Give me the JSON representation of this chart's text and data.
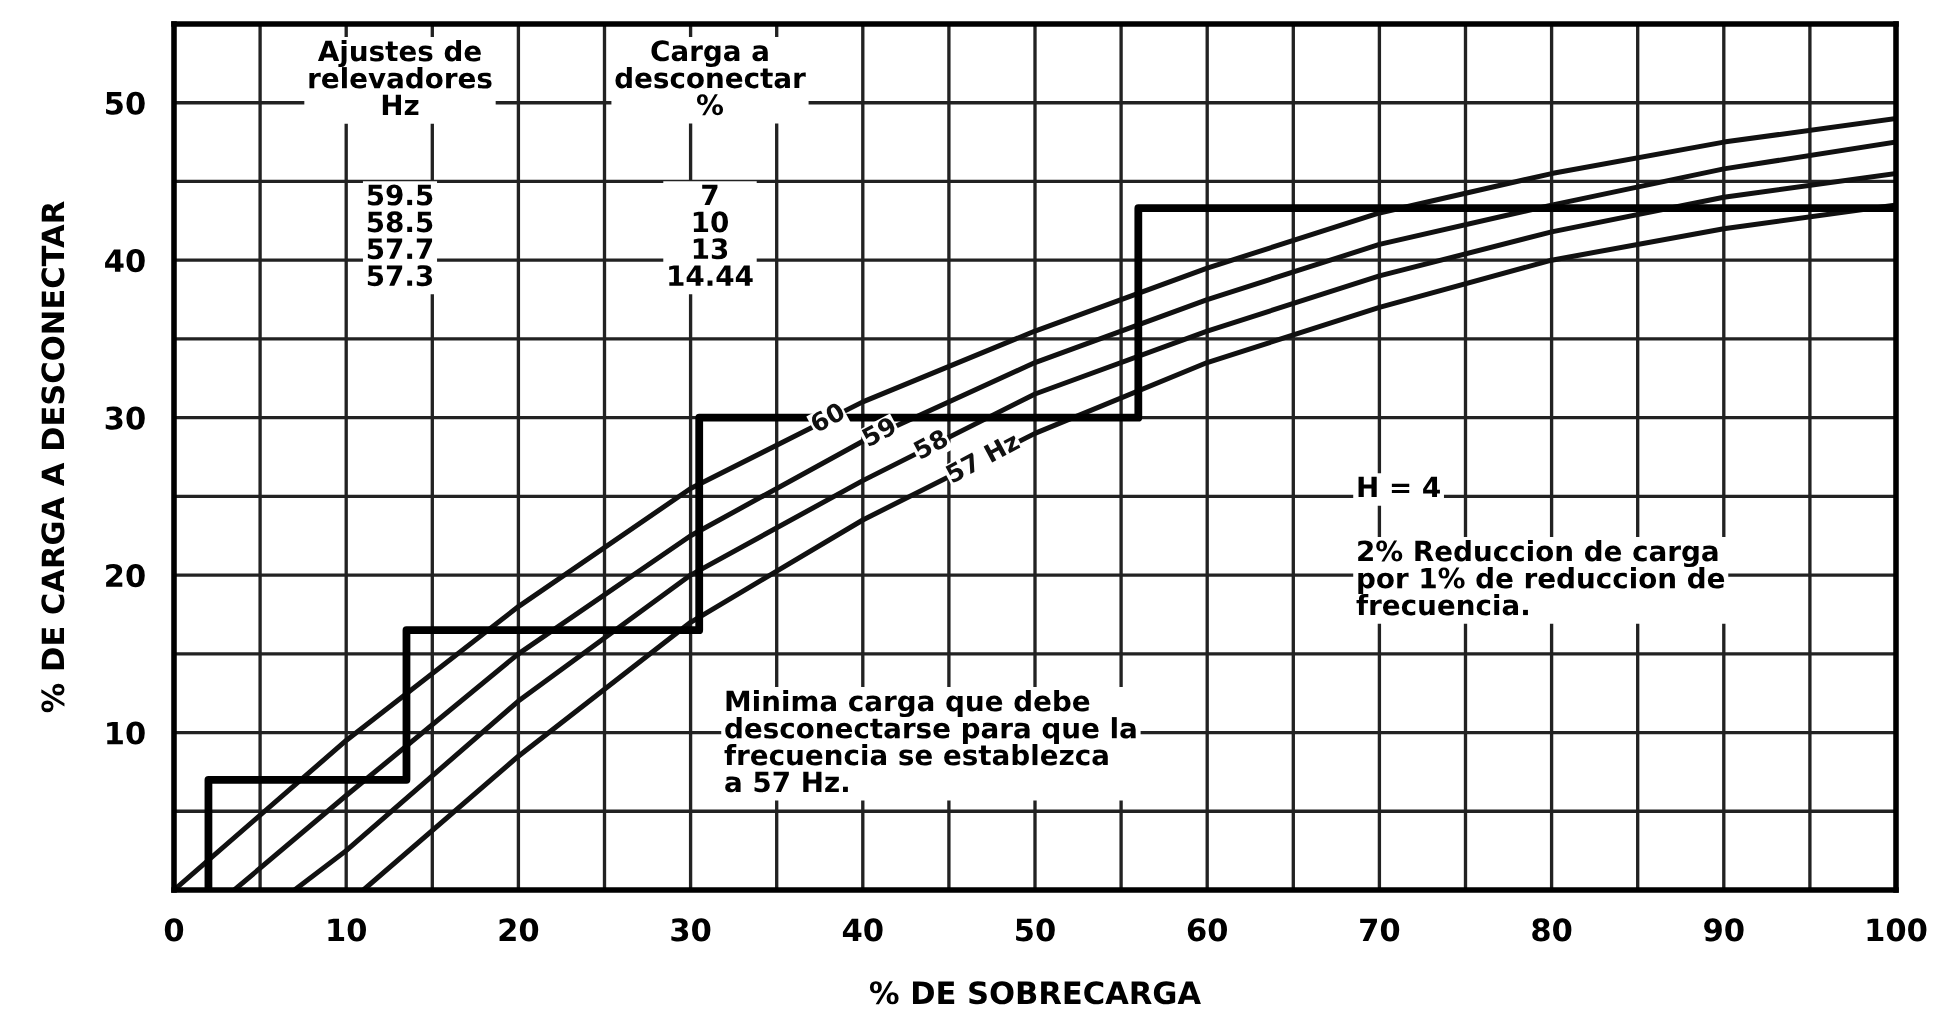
{
  "chart_data": {
    "type": "line",
    "xlabel": "% DE SOBRECARGA",
    "ylabel": "% DE CARGA A DESCONECTAR",
    "xlim": [
      0,
      100
    ],
    "ylim": [
      0,
      55
    ],
    "xticks": [
      0,
      {
        "value": 5,
        "label": null
      },
      10,
      {
        "value": 15,
        "label": null
      },
      20,
      {
        "value": 25,
        "label": null
      },
      30,
      {
        "value": 35,
        "label": null
      },
      40,
      {
        "value": 45,
        "label": null
      },
      50,
      {
        "value": 55,
        "label": null
      },
      60,
      {
        "value": 65,
        "label": null
      },
      70,
      {
        "value": 75,
        "label": null
      },
      80,
      {
        "value": 85,
        "label": null
      },
      90,
      {
        "value": 95,
        "label": null
      },
      100
    ],
    "yticks": [
      {
        "value": 5,
        "label": null
      },
      10,
      {
        "value": 15,
        "label": null
      },
      20,
      {
        "value": 25,
        "label": null
      },
      30,
      {
        "value": 35,
        "label": null
      },
      40,
      {
        "value": 45,
        "label": null
      },
      50
    ],
    "grid": true,
    "legend": false,
    "marker": "none",
    "line_style": "solid",
    "series": [
      {
        "name": "60",
        "color": "#111111",
        "x": [
          0,
          10,
          20,
          30,
          40,
          50,
          60,
          70,
          80,
          90,
          100
        ],
        "values": [
          0,
          9.5,
          18,
          25.5,
          31,
          35.5,
          39.5,
          43,
          45.5,
          47.5,
          49
        ]
      },
      {
        "name": "59",
        "color": "#111111",
        "x": [
          3.5,
          10,
          20,
          30,
          40,
          50,
          60,
          70,
          80,
          90,
          100
        ],
        "values": [
          0,
          6,
          15,
          22.5,
          28.5,
          33.5,
          37.5,
          41,
          43.5,
          45.8,
          47.5
        ]
      },
      {
        "name": "58",
        "color": "#111111",
        "x": [
          7,
          10,
          20,
          30,
          40,
          50,
          60,
          70,
          80,
          90,
          100
        ],
        "values": [
          0,
          2.5,
          12,
          20,
          26,
          31.5,
          35.5,
          39,
          41.8,
          44,
          45.5
        ]
      },
      {
        "name": "57 Hz",
        "color": "#111111",
        "x": [
          11,
          20,
          30,
          40,
          50,
          60,
          70,
          80,
          90,
          100
        ],
        "values": [
          0,
          8.5,
          17,
          23.5,
          29,
          33.5,
          37,
          40,
          42,
          43.5
        ]
      },
      {
        "color": "#000000",
        "x": [
          2,
          2,
          13.5,
          13.5,
          30.5,
          30.5,
          56,
          56,
          100
        ],
        "values": [
          0,
          7,
          7,
          16.5,
          16.5,
          30,
          30,
          43.3,
          43.3
        ]
      }
    ],
    "annotations": [
      "Ajustes de\nrelevadores\nHz",
      "Carga a\ndesconectar\n%",
      "59.5\n58.5\n57.7\n57.3",
      "7\n10\n13\n14.44",
      "H = 4",
      "2% Reduccion de carga\npor 1% de reduccion de\nfrecuencia.",
      "Minima carga que debe\ndesconectarse para que la\nfrecuencia se establezca\na 57 Hz."
    ]
  }
}
